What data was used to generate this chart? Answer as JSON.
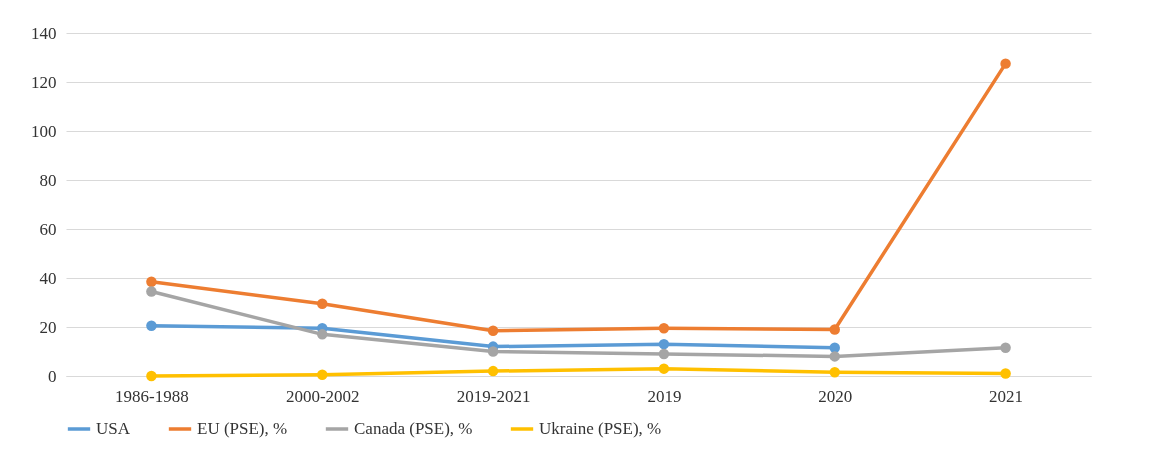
{
  "chart_data": {
    "type": "line",
    "categories": [
      "1986-1988",
      "2000-2002",
      "2019-2021",
      "2019",
      "2020",
      "2021"
    ],
    "series": [
      {
        "name": "USA",
        "color": "#5b9bd5",
        "values": [
          20.5,
          19.5,
          12,
          13,
          11.5,
          null
        ]
      },
      {
        "name": "EU (PSE), %",
        "color": "#ed7d31",
        "values": [
          38.5,
          29.5,
          18.5,
          19.5,
          19,
          127.5
        ]
      },
      {
        "name": "Canada (PSE), %",
        "color": "#a5a5a5",
        "values": [
          34.5,
          17,
          10,
          9,
          8,
          11.5
        ]
      },
      {
        "name": "Ukraine (PSE), %",
        "color": "#ffc000",
        "values": [
          0,
          0.5,
          2,
          3,
          1.5,
          1
        ]
      }
    ],
    "ylim": [
      0,
      140
    ],
    "yticks": [
      0,
      20,
      40,
      60,
      80,
      100,
      120,
      140
    ],
    "grid": "y",
    "legend": "bottom",
    "marker": "circle",
    "line_style": "solid"
  }
}
